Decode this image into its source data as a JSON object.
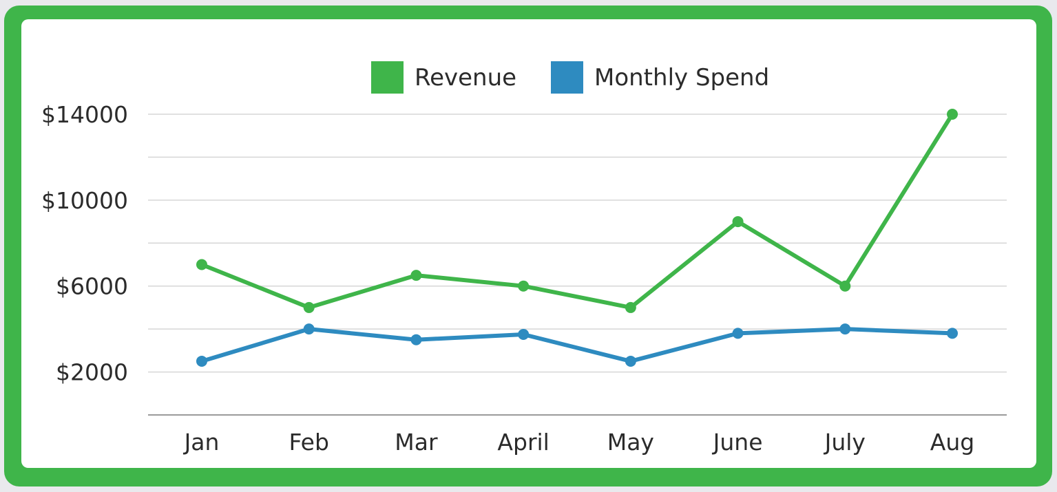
{
  "colors": {
    "revenue": "#3fb54a",
    "monthly_spend": "#2e8bc0",
    "frame": "#3fb54a",
    "grid": "#d6d6d6",
    "axis": "#9a9a9a"
  },
  "chart_data": {
    "type": "line",
    "title": "",
    "xlabel": "",
    "ylabel": "",
    "categories": [
      "Jan",
      "Feb",
      "Mar",
      "April",
      "May",
      "June",
      "July",
      "Aug"
    ],
    "series": [
      {
        "name": "Revenue",
        "color": "#3fb54a",
        "values": [
          7000,
          5000,
          6500,
          6000,
          5000,
          9000,
          6000,
          14000
        ]
      },
      {
        "name": "Monthly Spend",
        "color": "#2e8bc0",
        "values": [
          2500,
          4000,
          3500,
          3750,
          2500,
          3800,
          4000,
          3800
        ]
      }
    ],
    "ylim": [
      0,
      14000
    ],
    "yticks": [
      2000,
      6000,
      10000,
      14000
    ],
    "ytick_labels": [
      "$2000",
      "$6000",
      "$10000",
      "$14000"
    ],
    "grid": true,
    "legend": "top-center"
  }
}
